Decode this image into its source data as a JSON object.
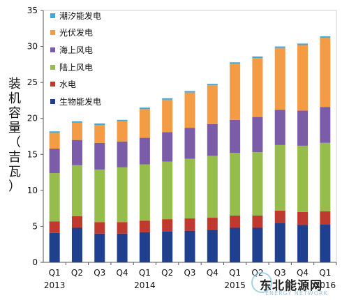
{
  "chart_data": {
    "type": "bar",
    "stacked": true,
    "ylabel": "装机容量（吉瓦）",
    "ylim": [
      0,
      35
    ],
    "yticks": [
      0,
      5,
      10,
      15,
      20,
      25,
      30,
      35
    ],
    "categories": [
      "Q1",
      "Q2",
      "Q3",
      "Q4",
      "Q1",
      "Q2",
      "Q3",
      "Q4",
      "Q1",
      "Q2",
      "Q3",
      "Q4",
      "Q1"
    ],
    "year_labels": [
      "2013",
      "",
      "",
      "",
      "2014",
      "",
      "",
      "",
      "2015",
      "",
      "",
      "",
      "2016"
    ],
    "legend_position": "top-left",
    "series": [
      {
        "name": "生物能发电",
        "color": "#1f3f8f",
        "values": [
          4.1,
          4.8,
          4.0,
          4.0,
          4.2,
          4.3,
          4.4,
          4.5,
          4.8,
          4.8,
          5.5,
          5.2,
          5.3
        ]
      },
      {
        "name": "水电",
        "color": "#c0392f",
        "values": [
          1.6,
          1.6,
          1.6,
          1.6,
          1.6,
          1.7,
          1.7,
          1.7,
          1.7,
          1.7,
          1.7,
          1.8,
          1.8
        ]
      },
      {
        "name": "陆上风电",
        "color": "#96bc4c",
        "values": [
          6.7,
          7.1,
          7.3,
          7.6,
          7.8,
          8.0,
          8.3,
          8.6,
          8.7,
          8.8,
          9.1,
          9.2,
          9.5
        ]
      },
      {
        "name": "海上风电",
        "color": "#7b5ca8",
        "values": [
          3.4,
          3.5,
          3.7,
          3.6,
          3.7,
          4.1,
          4.3,
          4.4,
          4.6,
          4.9,
          4.9,
          4.9,
          5.0
        ]
      },
      {
        "name": "光伏发电",
        "color": "#f39b45",
        "values": [
          2.2,
          2.4,
          2.5,
          2.8,
          4.0,
          4.5,
          4.9,
          5.4,
          7.8,
          8.2,
          8.6,
          9.1,
          9.6
        ]
      },
      {
        "name": "潮汐能发电",
        "color": "#3fa9dc",
        "values": [
          0.2,
          0.2,
          0.2,
          0.2,
          0.2,
          0.2,
          0.2,
          0.2,
          0.2,
          0.2,
          0.2,
          0.2,
          0.2
        ]
      }
    ]
  },
  "watermark": {
    "text": "东北能源网",
    "sub": "ENERGY NETWORK"
  }
}
